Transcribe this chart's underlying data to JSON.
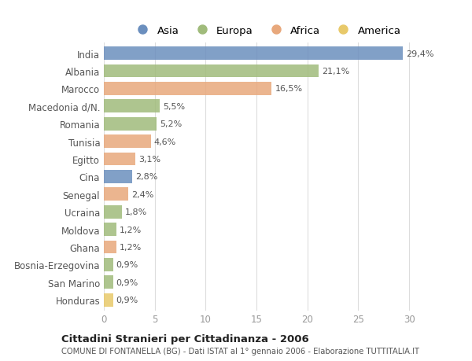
{
  "categories": [
    "India",
    "Albania",
    "Marocco",
    "Macedonia d/N.",
    "Romania",
    "Tunisia",
    "Egitto",
    "Cina",
    "Senegal",
    "Ucraina",
    "Moldova",
    "Ghana",
    "Bosnia-Erzegovina",
    "San Marino",
    "Honduras"
  ],
  "values": [
    29.4,
    21.1,
    16.5,
    5.5,
    5.2,
    4.6,
    3.1,
    2.8,
    2.4,
    1.8,
    1.2,
    1.2,
    0.9,
    0.9,
    0.9
  ],
  "labels": [
    "29,4%",
    "21,1%",
    "16,5%",
    "5,5%",
    "5,2%",
    "4,6%",
    "3,1%",
    "2,8%",
    "2,4%",
    "1,8%",
    "1,2%",
    "1,2%",
    "0,9%",
    "0,9%",
    "0,9%"
  ],
  "colors": [
    "#6b8fbe",
    "#a0bb7b",
    "#e8a87c",
    "#a0bb7b",
    "#a0bb7b",
    "#e8a87c",
    "#e8a87c",
    "#6b8fbe",
    "#e8a87c",
    "#a0bb7b",
    "#a0bb7b",
    "#e8a87c",
    "#a0bb7b",
    "#a0bb7b",
    "#e8c96a"
  ],
  "legend_labels": [
    "Asia",
    "Europa",
    "Africa",
    "America"
  ],
  "legend_colors": [
    "#6b8fbe",
    "#a0bb7b",
    "#e8a87c",
    "#e8c96a"
  ],
  "xlim": [
    0,
    32
  ],
  "xticks": [
    0,
    5,
    10,
    15,
    20,
    25,
    30
  ],
  "title": "Cittadini Stranieri per Cittadinanza - 2006",
  "subtitle": "COMUNE DI FONTANELLA (BG) - Dati ISTAT al 1° gennaio 2006 - Elaborazione TUTTITALIA.IT",
  "plot_bg_color": "#ffffff",
  "fig_bg_color": "#ffffff",
  "bar_height": 0.75,
  "figsize": [
    6.0,
    4.6
  ],
  "dpi": 100
}
